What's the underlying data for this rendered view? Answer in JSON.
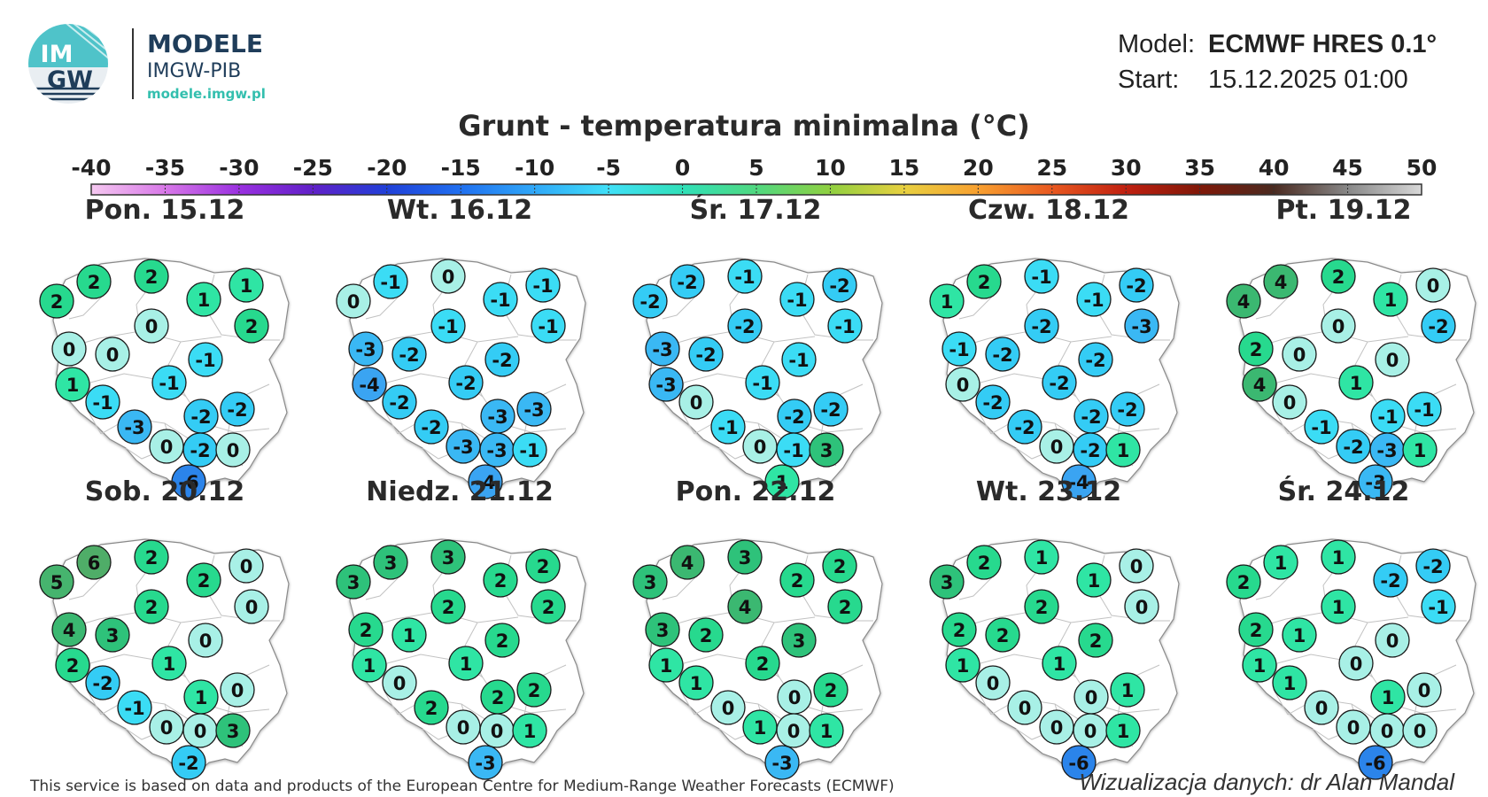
{
  "header": {
    "logo_text_top": "IM",
    "logo_text_bottom": "GW",
    "brand_title": "MODELE",
    "brand_subtitle": "IMGW-PIB",
    "brand_url": "modele.imgw.pl",
    "model_label": "Model:",
    "model_value": "ECMWF HRES 0.1°",
    "start_label": "Start:",
    "start_value": "15.12.2025 01:00"
  },
  "title": "Grunt - temperatura minimalna (°C)",
  "scale": {
    "ticks": [
      "-40",
      "-35",
      "-30",
      "-25",
      "-20",
      "-15",
      "-10",
      "-5",
      "0",
      "5",
      "10",
      "15",
      "20",
      "25",
      "30",
      "35",
      "40",
      "45",
      "50"
    ],
    "colors": [
      "#f5c8f0",
      "#d878e8",
      "#9a30e0",
      "#6020c8",
      "#2040d8",
      "#2070f0",
      "#30a8f8",
      "#40e0f8",
      "#30e0b8",
      "#50d880",
      "#90d040",
      "#e8d040",
      "#f8a030",
      "#e85820",
      "#c02010",
      "#801808",
      "#4a2a20",
      "#888888",
      "#d8d8d8"
    ]
  },
  "footer": {
    "left": "This service is based on data and products of the European Centre for Medium-Range Weather Forecasts (ECMWF)",
    "right": "Wizualizacja danych: dr Alan Mandal"
  },
  "maps": [
    {
      "label": "Pon. 15.12",
      "values": [
        2,
        2,
        2,
        1,
        1,
        2,
        0,
        0,
        0,
        -1,
        1,
        -1,
        -2,
        -2,
        -1,
        -3,
        0,
        -2,
        0,
        -6
      ]
    },
    {
      "label": "Wt. 16.12",
      "values": [
        0,
        -1,
        0,
        -1,
        -1,
        -1,
        -1,
        -3,
        -2,
        -2,
        -4,
        -2,
        -3,
        -3,
        -2,
        -2,
        -3,
        -3,
        -1,
        -4
      ]
    },
    {
      "label": "Śr. 17.12",
      "values": [
        -2,
        -2,
        -1,
        -1,
        -2,
        -1,
        -2,
        -3,
        -2,
        -1,
        -3,
        -1,
        -2,
        -2,
        0,
        -1,
        0,
        -1,
        3,
        1
      ]
    },
    {
      "label": "Czw. 18.12",
      "values": [
        1,
        2,
        -1,
        -1,
        -2,
        -3,
        -2,
        -1,
        -2,
        -2,
        0,
        -2,
        -2,
        -2,
        -2,
        -2,
        0,
        -2,
        1,
        -4
      ]
    },
    {
      "label": "Pt. 19.12",
      "values": [
        4,
        4,
        2,
        1,
        0,
        -2,
        0,
        2,
        0,
        0,
        4,
        1,
        -1,
        -1,
        0,
        -1,
        -2,
        -3,
        1,
        -3
      ]
    },
    {
      "label": "Sob. 20.12",
      "values": [
        5,
        6,
        2,
        2,
        0,
        0,
        2,
        4,
        3,
        0,
        2,
        1,
        1,
        0,
        -2,
        -1,
        0,
        0,
        3,
        -2
      ]
    },
    {
      "label": "Niedz. 21.12",
      "values": [
        3,
        3,
        3,
        2,
        2,
        2,
        2,
        2,
        1,
        2,
        1,
        1,
        2,
        2,
        0,
        2,
        0,
        0,
        1,
        -3
      ]
    },
    {
      "label": "Pon. 22.12",
      "values": [
        3,
        4,
        3,
        2,
        2,
        2,
        4,
        3,
        2,
        3,
        1,
        2,
        0,
        2,
        1,
        0,
        1,
        0,
        1,
        -3
      ]
    },
    {
      "label": "Wt. 23.12",
      "values": [
        3,
        2,
        1,
        1,
        0,
        0,
        2,
        2,
        2,
        2,
        1,
        1,
        0,
        1,
        0,
        0,
        0,
        0,
        1,
        -6
      ]
    },
    {
      "label": "Śr. 24.12",
      "values": [
        2,
        1,
        1,
        -2,
        -2,
        -1,
        1,
        2,
        1,
        0,
        1,
        0,
        1,
        0,
        1,
        0,
        0,
        0,
        0,
        -6
      ]
    }
  ]
}
